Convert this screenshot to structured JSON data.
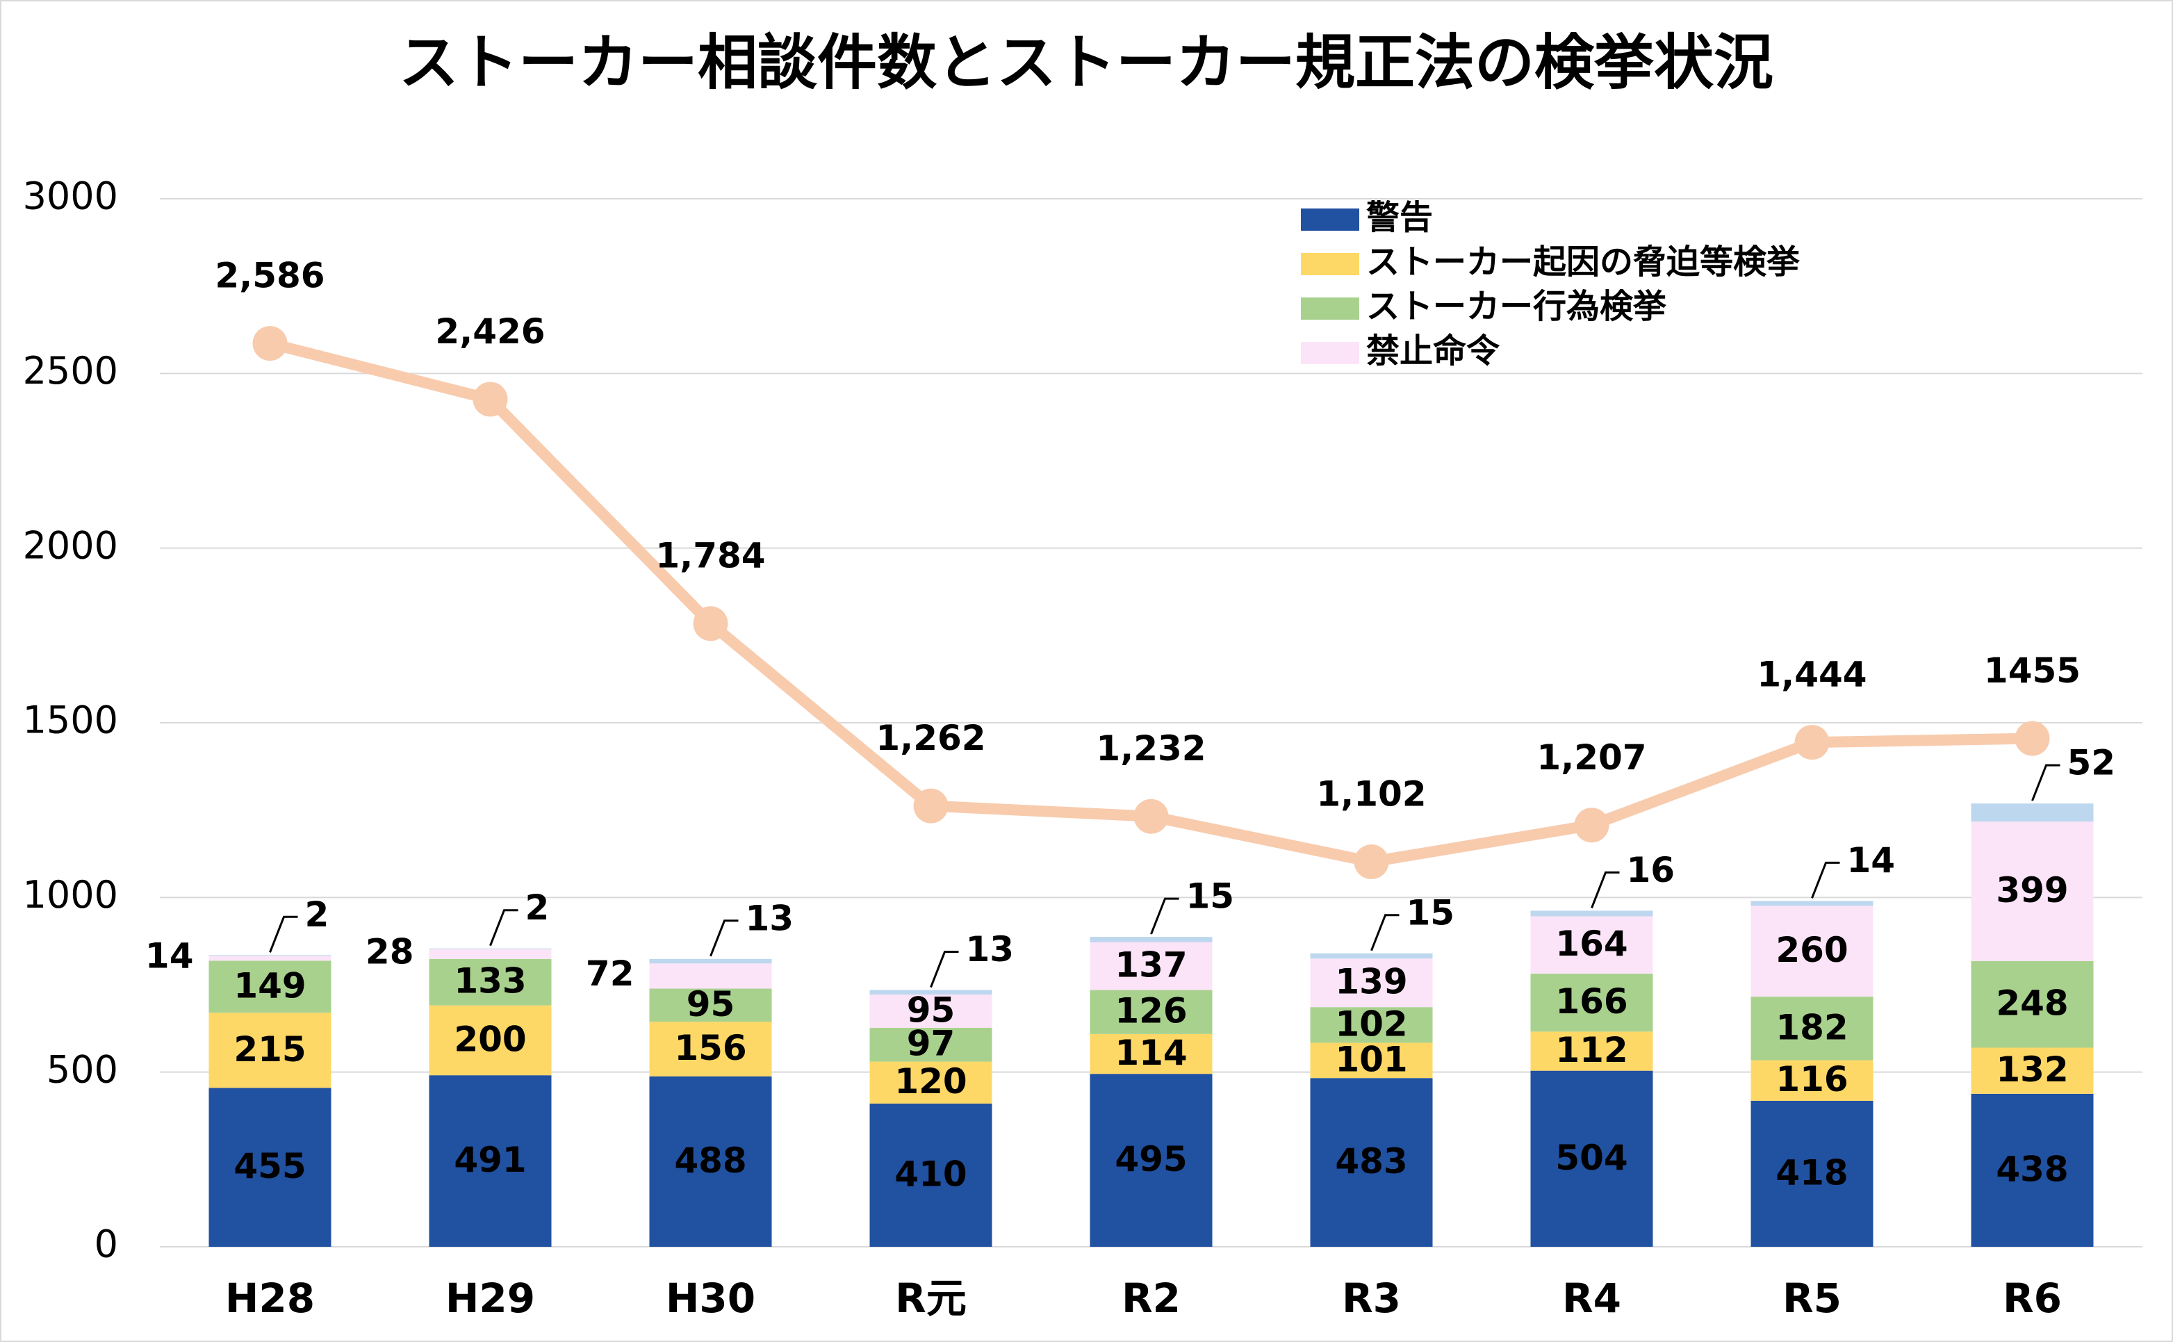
{
  "chart_data": {
    "type": "bar",
    "stacked": true,
    "title": "ストーカー相談件数とストーカー規正法の検挙状況",
    "categories": [
      "H28",
      "H29",
      "H30",
      "R元",
      "R2",
      "R3",
      "R4",
      "R5",
      "R6"
    ],
    "series": [
      {
        "name": "警告",
        "color": "#2151a1",
        "values": [
          455,
          491,
          488,
          410,
          495,
          483,
          504,
          418,
          438
        ]
      },
      {
        "name": "ストーカー起因の脅迫等検挙",
        "color": "#fed866",
        "values": [
          215,
          200,
          156,
          120,
          114,
          101,
          112,
          116,
          132
        ]
      },
      {
        "name": "ストーカー行為検挙",
        "color": "#a9d18e",
        "values": [
          149,
          133,
          95,
          97,
          126,
          102,
          166,
          182,
          248
        ]
      },
      {
        "name": "禁止命令",
        "color": "#fce4f8",
        "values": [
          14,
          28,
          72,
          95,
          137,
          139,
          164,
          260,
          399
        ]
      },
      {
        "color": "#bdd7ee",
        "values": [
          2,
          2,
          13,
          13,
          15,
          15,
          16,
          14,
          52
        ]
      }
    ],
    "line": {
      "color": "#f8cbad",
      "values": [
        2586,
        2426,
        1784,
        1262,
        1232,
        1102,
        1207,
        1444,
        1455
      ],
      "value_labels": [
        "2,586",
        "2,426",
        "1,784",
        "1,262",
        "1,232",
        "1,102",
        "1,207",
        "1,444",
        "1455"
      ]
    },
    "ylim": [
      0,
      3000
    ],
    "yticks": [
      0,
      500,
      1000,
      1500,
      2000,
      2500,
      3000
    ],
    "grid": true
  }
}
